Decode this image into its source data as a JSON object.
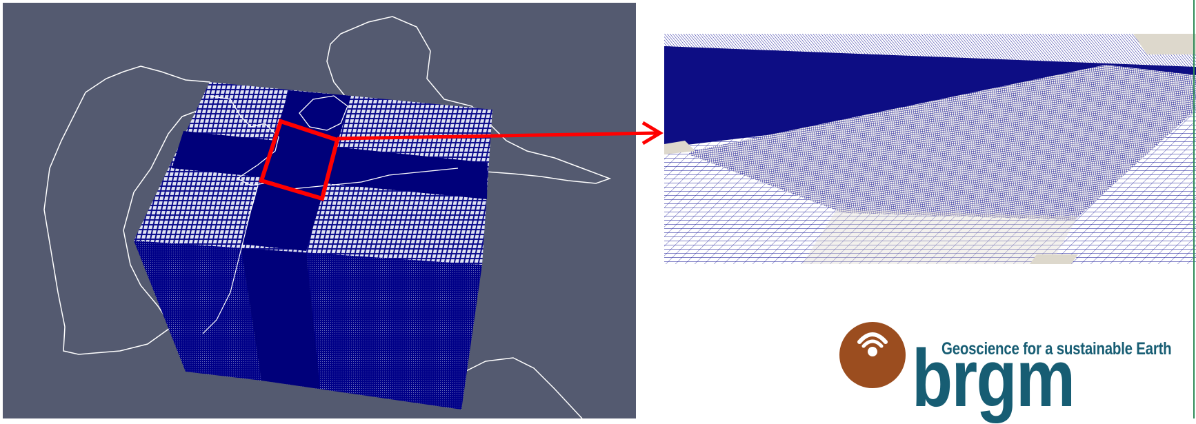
{
  "figure": {
    "left_panel": {
      "view": "3d-mesh-overview",
      "background_color": "#545a70",
      "mesh_color": "#000088",
      "outline_color": "#ffffff"
    },
    "zoom_indicator": {
      "color": "#ff0000",
      "target": "right-panel"
    },
    "right_panel": {
      "view": "mesh-detail-closeup",
      "mesh_color": "#00008b",
      "background_color": "#ddd8cc"
    }
  },
  "logo": {
    "tagline": "Geoscience for a sustainable Earth",
    "brand": "brgm",
    "icon_color": "#9b4d1f",
    "text_color": "#175d73"
  }
}
